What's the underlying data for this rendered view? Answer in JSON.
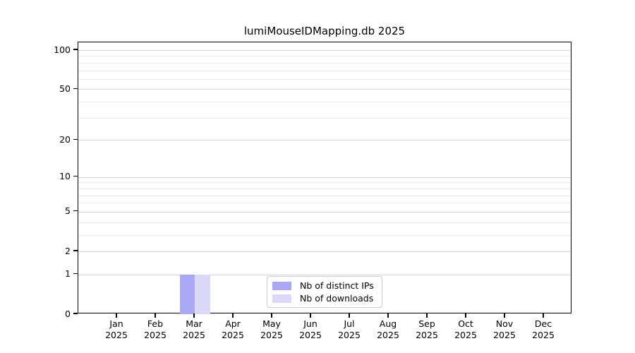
{
  "title": "lumiMouseIDMapping.db 2025",
  "chart_data": {
    "type": "bar",
    "title": "lumiMouseIDMapping.db 2025",
    "xlabel": "",
    "ylabel": "",
    "x": {
      "months": [
        "Jan",
        "Feb",
        "Mar",
        "Apr",
        "May",
        "Jun",
        "Jul",
        "Aug",
        "Sep",
        "Oct",
        "Nov",
        "Dec"
      ],
      "year": "2025"
    },
    "categories": [
      "Jan 2025",
      "Feb 2025",
      "Mar 2025",
      "Apr 2025",
      "May 2025",
      "Jun 2025",
      "Jul 2025",
      "Aug 2025",
      "Sep 2025",
      "Oct 2025",
      "Nov 2025",
      "Dec 2025"
    ],
    "series": [
      {
        "name": "Nb of distinct IPs",
        "color": "#a8a8f5",
        "values": [
          0,
          0,
          1,
          0,
          0,
          0,
          0,
          0,
          0,
          0,
          0,
          0
        ]
      },
      {
        "name": "Nb of downloads",
        "color": "#dadaf8",
        "values": [
          0,
          0,
          1,
          0,
          0,
          0,
          0,
          0,
          0,
          0,
          0,
          0
        ]
      }
    ],
    "y_axis": {
      "scale": "log10(1+x)",
      "major_ticks": [
        0,
        1,
        2,
        5,
        10,
        20,
        50,
        100
      ],
      "minor_gridlines": [
        3,
        4,
        6,
        7,
        8,
        9,
        30,
        40,
        60,
        70,
        80,
        90
      ],
      "top_value": 115
    },
    "grid": "horizontal",
    "legend_position": "inside lower center"
  },
  "colors": {
    "background": "#ffffff",
    "spine": "#000000",
    "major_grid": "#d2d2d2",
    "minor_grid": "#ececec",
    "text": "#000000",
    "legend_border": "#cccccc"
  }
}
